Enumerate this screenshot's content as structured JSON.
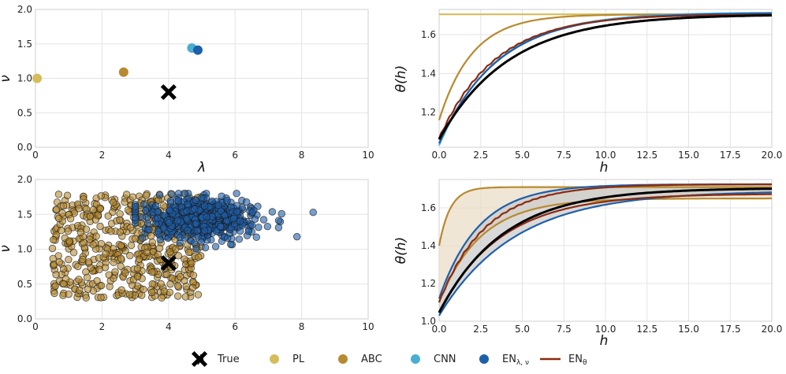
{
  "colors": {
    "true": "#000000",
    "PL": "#d4bd5a",
    "ABC": "#b88a2f",
    "CNN": "#4aaed2",
    "EN_lambda_nu": "#1e5faa",
    "EN_theta": "#8b2a0f",
    "abc_band": "#e8dcc4",
    "en_band": "#c9c9c9"
  },
  "legend": {
    "items": [
      {
        "key": "true",
        "label": "True",
        "marker": "cross"
      },
      {
        "key": "PL",
        "label": "PL",
        "marker": "circle"
      },
      {
        "key": "ABC",
        "label": "ABC",
        "marker": "circle"
      },
      {
        "key": "CNN",
        "label": "CNN",
        "marker": "circle"
      },
      {
        "key": "EN_lambda_nu",
        "label": "EN",
        "sub": "λ, ν",
        "marker": "circle"
      },
      {
        "key": "EN_theta",
        "label": "EN",
        "sub": "θ",
        "marker": "line"
      }
    ]
  },
  "chart_data": [
    {
      "id": "top-left",
      "type": "scatter",
      "title": "",
      "xlabel": "λ",
      "ylabel": "ν",
      "xlim": [
        0,
        10
      ],
      "ylim": [
        0,
        2
      ],
      "xticks": [
        "0",
        "2",
        "4",
        "6",
        "8",
        "10"
      ],
      "yticks": [
        "0.0",
        "0.5",
        "1.0",
        "1.5",
        "2.0"
      ],
      "points": [
        {
          "series": "PL",
          "x": 0.05,
          "y": 1.0
        },
        {
          "series": "ABC",
          "x": 2.65,
          "y": 1.09
        },
        {
          "series": "CNN",
          "x": 4.7,
          "y": 1.44
        },
        {
          "series": "EN_lambda_nu",
          "x": 4.88,
          "y": 1.41
        },
        {
          "series": "true",
          "x": 4.0,
          "y": 0.8
        }
      ]
    },
    {
      "id": "bottom-left",
      "type": "scatter",
      "title": "",
      "xlabel": "λ",
      "ylabel": "ν",
      "xlim": [
        0,
        10
      ],
      "ylim": [
        0,
        2
      ],
      "xticks": [
        "0",
        "2",
        "4",
        "6",
        "8",
        "10"
      ],
      "yticks": [
        "0.0",
        "0.5",
        "1.0",
        "1.5",
        "2.0"
      ],
      "clouds": [
        {
          "series": "ABC",
          "n": 520,
          "x_range": [
            0.5,
            5.0
          ],
          "y_range": [
            0.3,
            1.8
          ],
          "distribution": "uniform"
        },
        {
          "series": "EN_lambda_nu",
          "n": 600,
          "x_mean": 4.9,
          "x_sd": 0.75,
          "y_mean": 1.45,
          "y_sd": 0.15,
          "x_range": [
            3.0,
            8.6
          ],
          "y_range": [
            0.9,
            1.8
          ],
          "distribution": "normal"
        }
      ],
      "points": [
        {
          "series": "true",
          "x": 4.0,
          "y": 0.8
        }
      ]
    },
    {
      "id": "top-right",
      "type": "line",
      "title": "",
      "xlabel": "h",
      "ylabel": "θ(h)",
      "xlim": [
        0,
        20
      ],
      "ylim": [
        1.02,
        1.73
      ],
      "xticks": [
        "0.0",
        "2.5",
        "5.0",
        "7.5",
        "10.0",
        "12.5",
        "15.0",
        "17.5",
        "20.0"
      ],
      "yticks": [
        "1.2",
        "1.4",
        "1.6"
      ],
      "series": [
        {
          "name": "PL",
          "color_key": "PL",
          "start": 1.705,
          "end": 1.705,
          "rate": 1.0
        },
        {
          "name": "ABC",
          "color_key": "ABC",
          "start": 1.16,
          "end": 1.705,
          "rate": 0.5
        },
        {
          "name": "CNN",
          "color_key": "CNN",
          "start": 1.03,
          "end": 1.715,
          "rate": 0.29
        },
        {
          "name": "EN_lambda_nu",
          "color_key": "EN_lambda_nu",
          "start": 1.04,
          "end": 1.712,
          "rate": 0.285
        },
        {
          "name": "EN_theta",
          "color_key": "EN_theta",
          "start": 1.065,
          "end": 1.705,
          "rate": 0.3,
          "wiggle": true
        },
        {
          "name": "True",
          "color_key": "true",
          "start": 1.06,
          "end": 1.705,
          "rate": 0.24,
          "width": 3
        }
      ]
    },
    {
      "id": "bottom-right",
      "type": "line",
      "title": "",
      "xlabel": "h",
      "ylabel": "θ(h)",
      "xlim": [
        0,
        20
      ],
      "ylim": [
        1.0,
        1.75
      ],
      "xticks": [
        "0.0",
        "2.5",
        "5.0",
        "7.5",
        "10.0",
        "12.5",
        "15.0",
        "17.5",
        "20.0"
      ],
      "yticks": [
        "1.0",
        "1.2",
        "1.4",
        "1.6"
      ],
      "bands": [
        {
          "name": "ABC interval",
          "color_key": "abc_band",
          "upper": {
            "start": 1.4,
            "end": 1.71,
            "rate": 1.5
          },
          "lower": {
            "start": 1.1,
            "end": 1.65,
            "rate": 0.4
          }
        },
        {
          "name": "EN interval",
          "color_key": "en_band",
          "upper": {
            "start": 1.12,
            "end": 1.725,
            "rate": 0.42
          },
          "lower": {
            "start": 1.03,
            "end": 1.69,
            "rate": 0.22
          }
        }
      ],
      "series": [
        {
          "name": "ABC upper",
          "color_key": "ABC",
          "start": 1.4,
          "end": 1.71,
          "rate": 1.5
        },
        {
          "name": "ABC lower",
          "color_key": "ABC",
          "start": 1.1,
          "end": 1.65,
          "rate": 0.4
        },
        {
          "name": "EN_lambda_nu upper",
          "color_key": "EN_lambda_nu",
          "start": 1.12,
          "end": 1.725,
          "rate": 0.42
        },
        {
          "name": "EN_lambda_nu lower",
          "color_key": "EN_lambda_nu",
          "start": 1.03,
          "end": 1.69,
          "rate": 0.22
        },
        {
          "name": "EN_theta upper",
          "color_key": "EN_theta",
          "start": 1.1,
          "end": 1.725,
          "rate": 0.36,
          "wiggle": true
        },
        {
          "name": "EN_theta lower",
          "color_key": "EN_theta",
          "start": 1.05,
          "end": 1.675,
          "rate": 0.27
        },
        {
          "name": "True",
          "color_key": "true",
          "start": 1.045,
          "end": 1.705,
          "rate": 0.26,
          "width": 3
        }
      ]
    }
  ]
}
